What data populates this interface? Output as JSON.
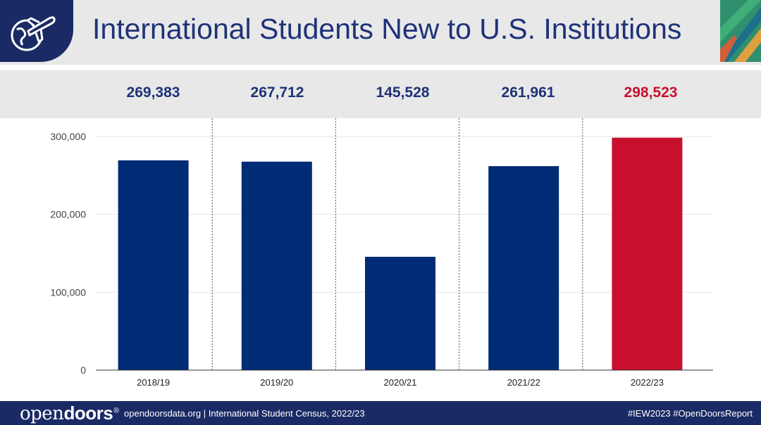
{
  "header": {
    "title": "International Students New to U.S. Institutions",
    "logo_icon": "globe-plane-icon"
  },
  "value_labels": [
    "269,383",
    "267,712",
    "145,528",
    "261,961",
    "298,523"
  ],
  "colors": {
    "bar": "#002b75",
    "highlight": "#c8102e",
    "value_text": "#1f3278",
    "header_bg": "#e8e8e8",
    "footer_bg": "#1a2a64"
  },
  "chart_data": {
    "type": "bar",
    "title": "International Students New to U.S. Institutions",
    "categories": [
      "2018/19",
      "2019/20",
      "2020/21",
      "2021/22",
      "2022/23"
    ],
    "values": [
      269383,
      267712,
      145528,
      261961,
      298523
    ],
    "highlight_index": 4,
    "ylim": [
      0,
      300000
    ],
    "yticks": [
      0,
      100000,
      200000,
      300000
    ],
    "ytick_labels": [
      "0",
      "100,000",
      "200,000",
      "300,000"
    ],
    "grid": true
  },
  "footer": {
    "brand_light": "open",
    "brand_bold": "doors",
    "brand_mark": "®",
    "citation": "opendoorsdata.org  |  International Student Census, 2022/23",
    "hashtags": "#IEW2023  #OpenDoorsReport"
  }
}
